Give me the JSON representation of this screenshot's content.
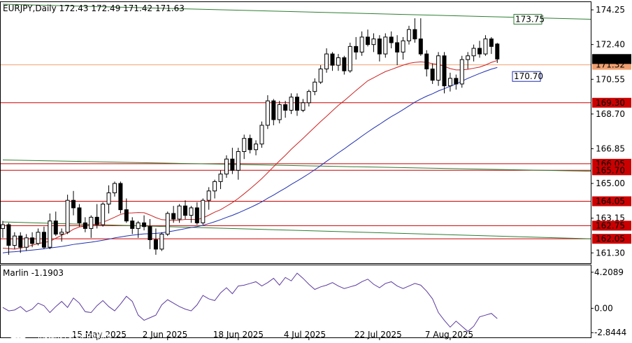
{
  "chart_data": {
    "type": "candlestick",
    "header": "EURJPY,Daily  172.43 172.49 171.42 171.63",
    "price_ticks": [
      "174.25",
      "172.40",
      "170.55",
      "168.70",
      "166.85",
      "165.00",
      "163.15",
      "161.30"
    ],
    "price_axis": {
      "ylim": [
        160.75,
        174.7
      ]
    },
    "date_labels": [
      "15 May 2025",
      "2 Jun 2025",
      "18 Jun 2025",
      "4 Jul 2025",
      "22 Jul 2025",
      "7 Aug 2025"
    ],
    "date_label_index": [
      16,
      28,
      40,
      52,
      64,
      76
    ],
    "current_price": "171.63",
    "levels": [
      {
        "value": "173.75",
        "price": 173.75,
        "color": "#2e7d32",
        "box": "outline"
      },
      {
        "value": "171.32",
        "price": 171.32,
        "color": "#f0a070",
        "box": "fill"
      },
      {
        "value": "170.70",
        "price": 170.7,
        "color": "#1f2fb0",
        "box": "outline"
      },
      {
        "value": "169.30",
        "price": 169.3,
        "color": "#cc0000",
        "box": "fill",
        "line": true
      },
      {
        "value": "166.05",
        "price": 166.05,
        "color": "#cc0000",
        "box": "fill",
        "line": true
      },
      {
        "value": "165.70",
        "price": 165.7,
        "color": "#cc0000",
        "box": "fill",
        "line": true
      },
      {
        "value": "164.05",
        "price": 164.05,
        "color": "#cc0000",
        "box": "fill",
        "line": true
      },
      {
        "value": "162.75",
        "price": 162.75,
        "color": "#cc0000",
        "box": "fill",
        "line": true
      },
      {
        "value": "162.05",
        "price": 162.05,
        "color": "#cc0000",
        "box": "fill",
        "line": true
      }
    ],
    "candles": [
      [
        162.6,
        163.0,
        162.1,
        162.8
      ],
      [
        162.8,
        162.9,
        161.2,
        161.7
      ],
      [
        161.7,
        162.4,
        161.5,
        162.2
      ],
      [
        162.2,
        162.4,
        161.3,
        161.6
      ],
      [
        161.6,
        162.3,
        161.4,
        162.1
      ],
      [
        162.1,
        162.4,
        161.6,
        161.8
      ],
      [
        161.8,
        162.6,
        161.7,
        162.4
      ],
      [
        162.4,
        162.7,
        161.5,
        161.6
      ],
      [
        161.6,
        163.4,
        161.5,
        163.0
      ],
      [
        163.0,
        163.5,
        162.2,
        162.3
      ],
      [
        162.3,
        162.6,
        161.9,
        162.4
      ],
      [
        162.4,
        164.4,
        162.3,
        164.1
      ],
      [
        164.1,
        164.6,
        163.3,
        163.7
      ],
      [
        163.7,
        163.9,
        162.7,
        162.9
      ],
      [
        162.9,
        163.2,
        162.4,
        162.6
      ],
      [
        162.6,
        163.3,
        162.1,
        163.2
      ],
      [
        163.2,
        163.9,
        162.6,
        162.8
      ],
      [
        162.8,
        164.0,
        162.7,
        163.9
      ],
      [
        163.9,
        164.9,
        163.4,
        164.5
      ],
      [
        164.5,
        165.1,
        164.3,
        165.0
      ],
      [
        165.0,
        165.1,
        163.4,
        163.6
      ],
      [
        163.6,
        164.2,
        162.9,
        163.0
      ],
      [
        163.0,
        163.2,
        162.3,
        162.6
      ],
      [
        162.6,
        163.0,
        162.1,
        162.9
      ],
      [
        162.9,
        163.3,
        162.5,
        162.7
      ],
      [
        162.7,
        163.1,
        161.5,
        162.0
      ],
      [
        162.0,
        162.6,
        161.2,
        161.5
      ],
      [
        161.5,
        162.4,
        161.4,
        162.3
      ],
      [
        162.3,
        163.5,
        162.2,
        163.4
      ],
      [
        163.4,
        163.8,
        162.9,
        163.1
      ],
      [
        163.1,
        163.9,
        162.9,
        163.8
      ],
      [
        163.8,
        164.1,
        163.1,
        163.3
      ],
      [
        163.3,
        163.8,
        162.9,
        163.7
      ],
      [
        163.7,
        164.0,
        162.8,
        162.9
      ],
      [
        162.9,
        164.2,
        162.8,
        164.1
      ],
      [
        164.1,
        164.8,
        163.6,
        164.6
      ],
      [
        164.6,
        165.2,
        164.2,
        165.1
      ],
      [
        165.1,
        165.7,
        164.7,
        165.5
      ],
      [
        165.5,
        166.5,
        165.3,
        166.3
      ],
      [
        166.3,
        166.9,
        165.5,
        165.7
      ],
      [
        165.7,
        166.9,
        165.2,
        166.7
      ],
      [
        166.7,
        167.6,
        166.3,
        167.4
      ],
      [
        167.4,
        167.6,
        166.6,
        166.8
      ],
      [
        166.8,
        167.3,
        166.5,
        167.1
      ],
      [
        167.1,
        168.3,
        166.9,
        168.1
      ],
      [
        168.1,
        169.7,
        167.9,
        169.4
      ],
      [
        169.4,
        169.5,
        168.1,
        168.4
      ],
      [
        168.4,
        169.4,
        168.2,
        169.2
      ],
      [
        169.2,
        169.4,
        168.5,
        168.9
      ],
      [
        168.9,
        169.8,
        168.7,
        169.6
      ],
      [
        169.6,
        169.8,
        168.6,
        168.9
      ],
      [
        168.9,
        169.5,
        168.8,
        169.3
      ],
      [
        169.3,
        170.0,
        169.1,
        169.9
      ],
      [
        169.9,
        170.6,
        169.7,
        170.4
      ],
      [
        170.4,
        171.3,
        170.3,
        171.1
      ],
      [
        171.1,
        172.2,
        170.9,
        171.9
      ],
      [
        171.9,
        172.0,
        171.0,
        171.3
      ],
      [
        171.3,
        171.9,
        171.0,
        171.7
      ],
      [
        171.7,
        171.8,
        170.8,
        171.0
      ],
      [
        171.0,
        172.5,
        170.9,
        172.3
      ],
      [
        172.3,
        172.8,
        171.6,
        172.0
      ],
      [
        172.0,
        173.1,
        171.8,
        172.8
      ],
      [
        172.8,
        173.2,
        172.3,
        172.4
      ],
      [
        172.4,
        173.0,
        172.0,
        172.7
      ],
      [
        172.7,
        172.9,
        171.5,
        171.9
      ],
      [
        171.9,
        173.0,
        171.7,
        172.8
      ],
      [
        172.8,
        173.1,
        172.2,
        172.5
      ],
      [
        172.5,
        172.9,
        171.3,
        172.0
      ],
      [
        172.0,
        172.8,
        171.6,
        172.6
      ],
      [
        172.6,
        173.4,
        172.4,
        173.2
      ],
      [
        173.2,
        173.8,
        172.5,
        172.7
      ],
      [
        172.7,
        173.8,
        171.8,
        171.9
      ],
      [
        171.9,
        172.1,
        170.7,
        171.1
      ],
      [
        171.1,
        171.4,
        170.3,
        170.5
      ],
      [
        170.5,
        172.0,
        170.2,
        171.8
      ],
      [
        171.8,
        172.0,
        169.8,
        170.2
      ],
      [
        170.2,
        170.9,
        169.9,
        170.6
      ],
      [
        170.6,
        170.8,
        170.0,
        170.3
      ],
      [
        170.3,
        171.8,
        170.1,
        171.6
      ],
      [
        171.6,
        172.0,
        171.1,
        171.8
      ],
      [
        171.8,
        172.4,
        171.5,
        172.2
      ],
      [
        172.2,
        172.6,
        171.7,
        171.9
      ],
      [
        171.9,
        172.9,
        171.8,
        172.7
      ],
      [
        172.7,
        172.8,
        171.9,
        172.3
      ],
      [
        172.43,
        172.49,
        171.42,
        171.63
      ]
    ],
    "series": [
      {
        "name": "",
        "color": "#cc2222",
        "values": [
          161.55,
          161.53,
          161.5,
          161.55,
          161.62,
          161.71,
          161.79,
          161.86,
          161.91,
          162.08,
          162.24,
          162.36,
          162.56,
          162.68,
          162.73,
          162.77,
          162.85,
          162.93,
          163.06,
          163.2,
          163.35,
          163.42,
          163.43,
          163.45,
          163.44,
          163.32,
          163.18,
          163.07,
          163.05,
          163.03,
          163.05,
          163.08,
          163.08,
          163.07,
          163.16,
          163.31,
          163.47,
          163.6,
          163.79,
          163.98,
          164.2,
          164.45,
          164.71,
          164.98,
          165.26,
          165.57,
          165.89,
          166.2,
          166.5,
          166.82,
          167.11,
          167.4,
          167.7,
          168,
          168.3,
          168.58,
          168.87,
          169.16,
          169.41,
          169.68,
          169.95,
          170.21,
          170.47,
          170.63,
          170.8,
          170.96,
          171.07,
          171.19,
          171.3,
          171.4,
          171.45,
          171.48,
          171.45,
          171.38,
          171.34,
          171.24,
          171.12,
          171.05,
          171.05,
          171.08,
          171.14,
          171.2,
          171.31,
          171.45,
          171.55
        ]
      },
      {
        "name": "",
        "color": "#1f2fb0",
        "values": [
          161.3,
          161.34,
          161.36,
          161.39,
          161.42,
          161.45,
          161.48,
          161.52,
          161.56,
          161.6,
          161.64,
          161.69,
          161.75,
          161.79,
          161.83,
          161.87,
          161.92,
          161.97,
          162.03,
          162.1,
          162.15,
          162.2,
          162.24,
          162.28,
          162.31,
          162.32,
          162.34,
          162.37,
          162.42,
          162.47,
          162.53,
          162.59,
          162.65,
          162.7,
          162.77,
          162.86,
          162.96,
          163.07,
          163.19,
          163.3,
          163.43,
          163.57,
          163.71,
          163.86,
          164.02,
          164.21,
          164.38,
          164.57,
          164.75,
          164.95,
          165.13,
          165.32,
          165.52,
          165.73,
          165.95,
          166.18,
          166.4,
          166.63,
          166.84,
          167.07,
          167.29,
          167.52,
          167.74,
          167.95,
          168.15,
          168.36,
          168.56,
          168.74,
          168.93,
          169.13,
          169.33,
          169.5,
          169.65,
          169.78,
          169.93,
          170.05,
          170.18,
          170.3,
          170.45,
          170.6,
          170.73,
          170.86,
          170.98,
          171.09,
          171.18
        ]
      }
    ],
    "trendlines": [
      {
        "color": "#2e7d32",
        "from": [
          0,
          174.55
        ],
        "to": [
          104,
          173.75
        ]
      },
      {
        "color": "#2e7d32",
        "from": [
          0,
          166.25
        ],
        "to": [
          104,
          165.65
        ]
      },
      {
        "color": "#2e7d32",
        "from": [
          0,
          162.95
        ],
        "to": [
          104,
          162.05
        ]
      }
    ],
    "indicator": {
      "name": "Marlin -1.1903",
      "ticks": [
        "4.2089",
        "0.00",
        "-2.8444"
      ],
      "tick_values": [
        4.2089,
        0,
        -2.8444
      ],
      "ylim": [
        -3.4,
        5.1
      ],
      "color": "#5b3aa0",
      "values": [
        0.1,
        -0.3,
        -0.2,
        0.2,
        -0.4,
        -0.1,
        0.6,
        0.3,
        -0.5,
        0.2,
        0.8,
        0.1,
        1.2,
        0.6,
        -0.4,
        -0.5,
        0.3,
        0.9,
        0.2,
        -0.3,
        0.5,
        1.4,
        0.8,
        -0.8,
        -1.4,
        -1.1,
        -0.8,
        0.4,
        1.0,
        0.6,
        0.2,
        -0.1,
        -0.3,
        0.4,
        1.5,
        1.1,
        0.9,
        1.8,
        2.4,
        1.7,
        2.6,
        2.7,
        2.9,
        3.1,
        2.6,
        3.0,
        3.5,
        2.7,
        3.6,
        3.2,
        4.1,
        3.5,
        2.8,
        2.2,
        2.5,
        2.7,
        3.0,
        2.6,
        2.3,
        2.5,
        2.7,
        3.1,
        3.4,
        2.8,
        2.4,
        2.9,
        3.1,
        2.6,
        2.3,
        2.6,
        2.9,
        2.7,
        2.0,
        1.1,
        -0.5,
        -1.4,
        -2.2,
        -1.5,
        -2.1,
        -2.7,
        -2.1,
        -1.0,
        -0.8,
        -0.6,
        -1.2
      ]
    },
    "grid": false,
    "legend": "none"
  },
  "watermark": {
    "brand": "instaforex",
    "tagline": "Instant Forex Trading"
  }
}
